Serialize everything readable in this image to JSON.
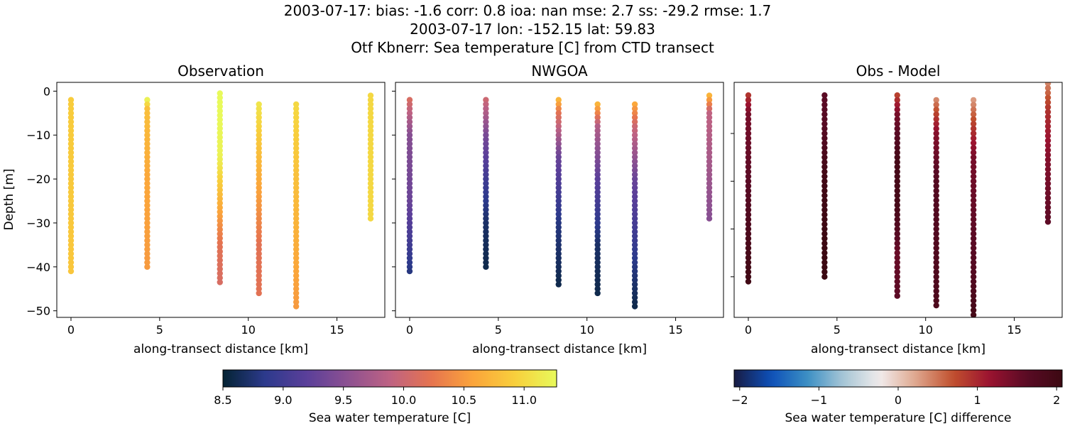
{
  "figure": {
    "title_lines": [
      "2003-07-17: bias: -1.6  corr: 0.8  ioa: nan  mse: 2.7  ss: -29.2  rmse: 1.7",
      "2003-07-17 lon: -152.15 lat: 59.83",
      "Otf Kbnerr: Sea temperature [C] from CTD transect"
    ]
  },
  "chart_data": [
    {
      "type": "scatter",
      "title": "Observation",
      "xlabel": "along-transect distance [km]",
      "ylabel": "Depth [m]",
      "xlim": [
        -0.8,
        17.7
      ],
      "ylim": [
        -51.5,
        2
      ],
      "xticks": [
        0,
        5,
        10,
        15
      ],
      "yticks": [
        0,
        -10,
        -20,
        -30,
        -40,
        -50
      ],
      "ytick_labels": [
        "0",
        "−10",
        "−20",
        "−30",
        "−40",
        "−50"
      ],
      "colormap": "thermal",
      "clim": [
        8.5,
        11.27
      ],
      "stations": [
        {
          "x": 0,
          "top": -2,
          "bottom": -41,
          "profile": [
            [
              -2,
              10.9
            ],
            [
              -41,
              10.85
            ]
          ]
        },
        {
          "x": 4.3,
          "top": -2,
          "bottom": -40,
          "profile": [
            [
              -2,
              11.2
            ],
            [
              -4,
              10.8
            ],
            [
              -20,
              10.6
            ],
            [
              -40,
              10.5
            ]
          ]
        },
        {
          "x": 8.4,
          "top": -0.5,
          "bottom": -44,
          "profile": [
            [
              -0.5,
              11.3
            ],
            [
              -15,
              11.2
            ],
            [
              -25,
              10.7
            ],
            [
              -35,
              10.2
            ],
            [
              -44,
              10.1
            ]
          ]
        },
        {
          "x": 10.6,
          "top": -3,
          "bottom": -46,
          "profile": [
            [
              -3,
              11.1
            ],
            [
              -10,
              10.9
            ],
            [
              -25,
              10.5
            ],
            [
              -35,
              10.2
            ],
            [
              -46,
              10.2
            ]
          ]
        },
        {
          "x": 12.7,
          "top": -3,
          "bottom": -49,
          "profile": [
            [
              -3,
              11.0
            ],
            [
              -20,
              10.8
            ],
            [
              -40,
              10.6
            ],
            [
              -49,
              10.5
            ]
          ]
        },
        {
          "x": 16.9,
          "top": -1,
          "bottom": -29,
          "profile": [
            [
              -1,
              11.0
            ],
            [
              -29,
              11.0
            ]
          ]
        }
      ]
    },
    {
      "type": "scatter",
      "title": "NWGOA",
      "xlabel": "along-transect distance [km]",
      "xlim": [
        -0.8,
        17.7
      ],
      "ylim": [
        -51.5,
        2
      ],
      "xticks": [
        0,
        5,
        10,
        15
      ],
      "yticks": [
        0,
        -10,
        -20,
        -30,
        -40,
        -50
      ],
      "colormap": "thermal",
      "clim": [
        8.5,
        11.27
      ],
      "stations": [
        {
          "x": 0,
          "top": -2,
          "bottom": -41,
          "profile": [
            [
              -2,
              10.1
            ],
            [
              -10,
              9.5
            ],
            [
              -25,
              9.3
            ],
            [
              -35,
              9.0
            ],
            [
              -41,
              8.8
            ]
          ]
        },
        {
          "x": 4.3,
          "top": -2,
          "bottom": -40,
          "profile": [
            [
              -2,
              10.0
            ],
            [
              -10,
              9.4
            ],
            [
              -20,
              9.0
            ],
            [
              -30,
              8.7
            ],
            [
              -40,
              8.6
            ]
          ]
        },
        {
          "x": 8.4,
          "top": -2,
          "bottom": -44,
          "profile": [
            [
              -2,
              10.7
            ],
            [
              -5,
              10.2
            ],
            [
              -15,
              9.3
            ],
            [
              -30,
              8.8
            ],
            [
              -44,
              8.6
            ]
          ]
        },
        {
          "x": 10.6,
          "top": -3,
          "bottom": -46,
          "profile": [
            [
              -3,
              10.7
            ],
            [
              -8,
              9.8
            ],
            [
              -20,
              9.2
            ],
            [
              -35,
              8.7
            ],
            [
              -46,
              8.6
            ]
          ]
        },
        {
          "x": 12.7,
          "top": -3,
          "bottom": -49,
          "profile": [
            [
              -3,
              10.6
            ],
            [
              -8,
              10.0
            ],
            [
              -20,
              9.3
            ],
            [
              -40,
              8.8
            ],
            [
              -49,
              8.6
            ]
          ]
        },
        {
          "x": 16.9,
          "top": -1,
          "bottom": -29,
          "profile": [
            [
              -1,
              10.7
            ],
            [
              -5,
              9.9
            ],
            [
              -29,
              9.5
            ]
          ]
        }
      ]
    },
    {
      "type": "scatter",
      "title": "Obs - Model",
      "xlabel": "along-transect distance [km]",
      "xlim": [
        -0.8,
        17.7
      ],
      "ylim": [
        -48.5,
        0.7
      ],
      "xticks": [
        0,
        5,
        10,
        15
      ],
      "yticks": [
        -10,
        -20,
        -30,
        -40
      ],
      "colormap": "balance",
      "clim": [
        -2.07,
        2.07
      ],
      "stations": [
        {
          "x": 0,
          "top": -2,
          "bottom": -41,
          "profile": [
            [
              -2,
              0.9
            ],
            [
              -6,
              1.4
            ],
            [
              -20,
              1.6
            ],
            [
              -41,
              2.0
            ]
          ]
        },
        {
          "x": 4.3,
          "top": -2,
          "bottom": -40,
          "profile": [
            [
              -2,
              1.6
            ],
            [
              -10,
              1.7
            ],
            [
              -20,
              2.0
            ],
            [
              -40,
              2.1
            ]
          ]
        },
        {
          "x": 8.4,
          "top": -2,
          "bottom": -44,
          "profile": [
            [
              -2,
              0.8
            ],
            [
              -6,
              1.4
            ],
            [
              -15,
              1.9
            ],
            [
              -25,
              1.9
            ],
            [
              -35,
              1.5
            ],
            [
              -44,
              1.6
            ]
          ]
        },
        {
          "x": 10.6,
          "top": -3,
          "bottom": -46,
          "profile": [
            [
              -3,
              0.4
            ],
            [
              -6,
              0.8
            ],
            [
              -10,
              1.3
            ],
            [
              -20,
              1.7
            ],
            [
              -46,
              1.8
            ]
          ]
        },
        {
          "x": 12.7,
          "top": -3,
          "bottom": -51,
          "profile": [
            [
              -3,
              0.3
            ],
            [
              -8,
              0.8
            ],
            [
              -15,
              1.4
            ],
            [
              -40,
              1.7
            ],
            [
              -51,
              2.0
            ]
          ]
        },
        {
          "x": 16.9,
          "top": 0.5,
          "bottom": -29,
          "profile": [
            [
              0.5,
              0.4
            ],
            [
              -5,
              0.9
            ],
            [
              -15,
              1.3
            ],
            [
              -29,
              1.6
            ]
          ]
        }
      ]
    }
  ],
  "colorbars": [
    {
      "label": "Sea water temperature [C]",
      "colormap": "thermal",
      "range": [
        8.5,
        11.27
      ],
      "ticks": [
        8.5,
        9.0,
        9.5,
        10.0,
        10.5,
        11.0
      ],
      "tick_labels": [
        "8.5",
        "9.0",
        "9.5",
        "10.0",
        "10.5",
        "11.0"
      ]
    },
    {
      "label": "Sea water temperature [C] difference",
      "colormap": "balance",
      "range": [
        -2.07,
        2.07
      ],
      "ticks": [
        -2,
        -1,
        0,
        1,
        2
      ],
      "tick_labels": [
        "−2",
        "−1",
        "0",
        "1",
        "2"
      ]
    }
  ],
  "colormaps": {
    "thermal": [
      "#042333",
      "#2c3a8c",
      "#5a3f9a",
      "#8d5191",
      "#be6283",
      "#e6744f",
      "#fba53b",
      "#f8cf3c",
      "#e8fa5b"
    ],
    "balance": [
      "#181c43",
      "#0d4fb8",
      "#3b8fc4",
      "#a7c6d6",
      "#f1ecec",
      "#dea58c",
      "#c1502e",
      "#9b1330",
      "#5a0b25",
      "#3c0912"
    ]
  }
}
